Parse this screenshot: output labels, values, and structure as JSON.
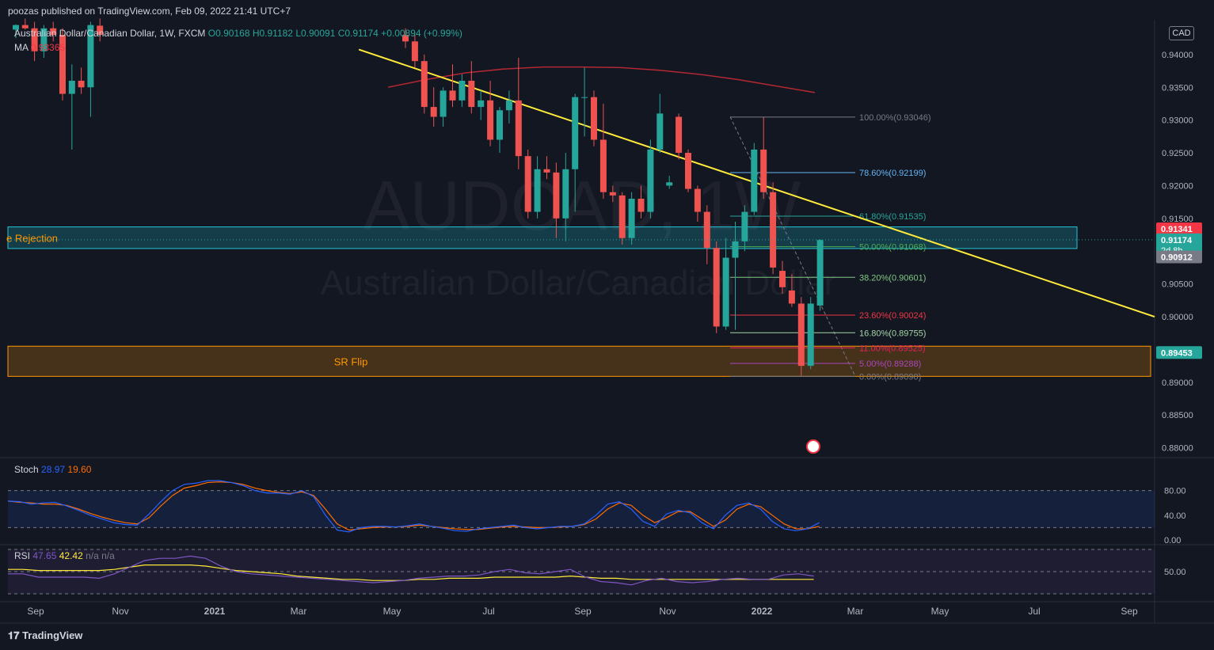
{
  "header": {
    "published": "poozas published on TradingView.com, Feb 09, 2022 21:41 UTC+7",
    "symbol_line": "Australian Dollar/Canadian Dollar, 1W, FXCM",
    "ohlc": "O0.90168 H0.91182 L0.90091 C0.91174 +0.00894 (+0.99%)",
    "ma_label": "MA",
    "ma_value": "0.93365",
    "currency_button": "CAD"
  },
  "watermark": {
    "symbol": "AUDCAD, 1W",
    "name": "Australian Dollar/Canadian Dollar"
  },
  "footer": {
    "brand": "TradingView"
  },
  "price_tags": [
    {
      "value": "0.91341",
      "color": "#f23645"
    },
    {
      "value": "0.91174",
      "sub": "2d 8h",
      "color": "#26a69a"
    },
    {
      "value": "0.90912",
      "color": "#787b86"
    },
    {
      "value": "0.89453",
      "color": "#26a69a"
    }
  ],
  "zones": [
    {
      "label": "e Rejection",
      "top": 0.9137,
      "bottom": 0.9104,
      "color": "#22c5d8"
    },
    {
      "label": "SR Flip",
      "top": 0.8955,
      "bottom": 0.8909,
      "color": "#ff9800"
    }
  ],
  "fib_levels": [
    {
      "label": "100.00%(0.93046)",
      "price": 0.93046,
      "color": "#787b86"
    },
    {
      "label": "78.60%(0.92199)",
      "price": 0.92199,
      "color": "#64b5f6"
    },
    {
      "label": "61.80%(0.91535)",
      "price": 0.91535,
      "color": "#26a69a"
    },
    {
      "label": "50.00%(0.91068)",
      "price": 0.91068,
      "color": "#4caf50"
    },
    {
      "label": "38.20%(0.90601)",
      "price": 0.90601,
      "color": "#81c784"
    },
    {
      "label": "23.60%(0.90024)",
      "price": 0.90024,
      "color": "#f23645"
    },
    {
      "label": "16.80%(0.89755)",
      "price": 0.89755,
      "color": "#a5d6a7"
    },
    {
      "label": "11.00%(0.89525)",
      "price": 0.89525,
      "color": "#e91e63"
    },
    {
      "label": "5.00%(0.89288)",
      "price": 0.89288,
      "color": "#ab47bc"
    },
    {
      "label": "0.00%(0.89090)",
      "price": 0.8909,
      "color": "#787b86"
    }
  ],
  "indicators": {
    "stoch": {
      "name": "Stoch",
      "k": "28.97",
      "d": "19.60",
      "levels": [
        "80.00",
        "40.00",
        "0.00"
      ]
    },
    "rsi": {
      "name": "RSI",
      "value": "47.65",
      "ma": "42.42",
      "extra": "n/a n/a",
      "levels": [
        "50.00"
      ]
    }
  },
  "chart_data": {
    "type": "candlestick",
    "symbol": "AUDCAD",
    "timeframe": "1W",
    "y_ticks": [
      "0.94000",
      "0.93500",
      "0.93000",
      "0.92500",
      "0.92000",
      "0.91500",
      "0.90500",
      "0.90000",
      "0.89000",
      "0.88500",
      "0.88000"
    ],
    "ylim": [
      0.8785,
      0.9453
    ],
    "x_ticks": [
      "Sep",
      "Nov",
      "2021",
      "Mar",
      "May",
      "Jul",
      "Sep",
      "Nov",
      "2022",
      "Mar",
      "May",
      "Jul",
      "Sep"
    ],
    "candles": [
      {
        "o": 0.9438,
        "h": 0.9446,
        "l": 0.9425,
        "c": 0.9445
      },
      {
        "o": 0.9445,
        "h": 0.9455,
        "l": 0.9438,
        "c": 0.944
      },
      {
        "o": 0.944,
        "h": 0.945,
        "l": 0.939,
        "c": 0.9405
      },
      {
        "o": 0.9405,
        "h": 0.9445,
        "l": 0.9395,
        "c": 0.944
      },
      {
        "o": 0.944,
        "h": 0.945,
        "l": 0.942,
        "c": 0.943
      },
      {
        "o": 0.943,
        "h": 0.944,
        "l": 0.933,
        "c": 0.934
      },
      {
        "o": 0.934,
        "h": 0.9385,
        "l": 0.9255,
        "c": 0.936
      },
      {
        "o": 0.936,
        "h": 0.938,
        "l": 0.934,
        "c": 0.935
      },
      {
        "o": 0.935,
        "h": 0.945,
        "l": 0.9305,
        "c": 0.9445
      },
      {
        "o": 0.9444,
        "h": 0.9455,
        "l": 0.942,
        "c": 0.943
      },
      {
        "o": 0.943,
        "h": 0.944,
        "l": 0.941,
        "c": 0.942
      },
      {
        "o": 0.942,
        "h": 0.943,
        "l": 0.938,
        "c": 0.939
      },
      {
        "o": 0.939,
        "h": 0.94,
        "l": 0.931,
        "c": 0.932
      },
      {
        "o": 0.932,
        "h": 0.935,
        "l": 0.929,
        "c": 0.9305
      },
      {
        "o": 0.9305,
        "h": 0.935,
        "l": 0.929,
        "c": 0.9345
      },
      {
        "o": 0.9345,
        "h": 0.9385,
        "l": 0.932,
        "c": 0.933
      },
      {
        "o": 0.933,
        "h": 0.937,
        "l": 0.932,
        "c": 0.936
      },
      {
        "o": 0.936,
        "h": 0.939,
        "l": 0.931,
        "c": 0.932
      },
      {
        "o": 0.932,
        "h": 0.9345,
        "l": 0.93,
        "c": 0.933
      },
      {
        "o": 0.933,
        "h": 0.936,
        "l": 0.926,
        "c": 0.927
      },
      {
        "o": 0.927,
        "h": 0.932,
        "l": 0.925,
        "c": 0.9315
      },
      {
        "o": 0.9315,
        "h": 0.9345,
        "l": 0.9295,
        "c": 0.933
      },
      {
        "o": 0.933,
        "h": 0.9395,
        "l": 0.9225,
        "c": 0.9245
      },
      {
        "o": 0.9245,
        "h": 0.9255,
        "l": 0.915,
        "c": 0.916
      },
      {
        "o": 0.916,
        "h": 0.9245,
        "l": 0.915,
        "c": 0.9225
      },
      {
        "o": 0.9225,
        "h": 0.9245,
        "l": 0.921,
        "c": 0.922
      },
      {
        "o": 0.922,
        "h": 0.9235,
        "l": 0.912,
        "c": 0.915
      },
      {
        "o": 0.915,
        "h": 0.925,
        "l": 0.9115,
        "c": 0.9225
      },
      {
        "o": 0.9225,
        "h": 0.934,
        "l": 0.916,
        "c": 0.9335
      },
      {
        "o": 0.9335,
        "h": 0.938,
        "l": 0.9275,
        "c": 0.9335
      },
      {
        "o": 0.9335,
        "h": 0.9345,
        "l": 0.926,
        "c": 0.927
      },
      {
        "o": 0.927,
        "h": 0.9325,
        "l": 0.918,
        "c": 0.919
      },
      {
        "o": 0.919,
        "h": 0.92,
        "l": 0.9175,
        "c": 0.9185
      },
      {
        "o": 0.9185,
        "h": 0.919,
        "l": 0.911,
        "c": 0.912
      },
      {
        "o": 0.912,
        "h": 0.919,
        "l": 0.911,
        "c": 0.918
      },
      {
        "o": 0.918,
        "h": 0.92,
        "l": 0.915,
        "c": 0.916
      },
      {
        "o": 0.916,
        "h": 0.927,
        "l": 0.915,
        "c": 0.9255
      },
      {
        "o": 0.9255,
        "h": 0.934,
        "l": 0.925,
        "c": 0.931
      },
      {
        "o": 0.92,
        "h": 0.9215,
        "l": 0.9195,
        "c": 0.9205
      },
      {
        "o": 0.9305,
        "h": 0.931,
        "l": 0.924,
        "c": 0.925
      },
      {
        "o": 0.925,
        "h": 0.9255,
        "l": 0.919,
        "c": 0.9195
      },
      {
        "o": 0.9195,
        "h": 0.92,
        "l": 0.9145,
        "c": 0.916
      },
      {
        "o": 0.916,
        "h": 0.917,
        "l": 0.908,
        "c": 0.9105
      },
      {
        "o": 0.9105,
        "h": 0.9115,
        "l": 0.8975,
        "c": 0.8985
      },
      {
        "o": 0.8985,
        "h": 0.912,
        "l": 0.898,
        "c": 0.909
      },
      {
        "o": 0.909,
        "h": 0.9145,
        "l": 0.898,
        "c": 0.9115
      },
      {
        "o": 0.9115,
        "h": 0.917,
        "l": 0.91,
        "c": 0.916
      },
      {
        "o": 0.916,
        "h": 0.9265,
        "l": 0.9155,
        "c": 0.9255
      },
      {
        "o": 0.9255,
        "h": 0.9305,
        "l": 0.918,
        "c": 0.919
      },
      {
        "o": 0.919,
        "h": 0.9205,
        "l": 0.9065,
        "c": 0.9075
      },
      {
        "o": 0.907,
        "h": 0.9085,
        "l": 0.9035,
        "c": 0.9045
      },
      {
        "o": 0.904,
        "h": 0.9065,
        "l": 0.9015,
        "c": 0.902
      },
      {
        "o": 0.902,
        "h": 0.903,
        "l": 0.891,
        "c": 0.8925
      },
      {
        "o": 0.8925,
        "h": 0.903,
        "l": 0.892,
        "c": 0.902
      },
      {
        "o": 0.9017,
        "h": 0.9118,
        "l": 0.9009,
        "c": 0.9117
      }
    ],
    "ma_series": [
      0.935,
      0.9362,
      0.9372,
      0.9378,
      0.9381,
      0.9381,
      0.938,
      0.9376,
      0.937,
      0.9362,
      0.9352,
      0.9342
    ],
    "trendline": {
      "from": {
        "candle": 24,
        "price": 0.941
      },
      "to": {
        "candle": 114,
        "price": 0.9
      }
    },
    "stoch_k": [
      63,
      62,
      58,
      60,
      61,
      55,
      48,
      40,
      34,
      28,
      25,
      24,
      42,
      62,
      80,
      90,
      92,
      96,
      96,
      93,
      88,
      80,
      76,
      76,
      74,
      80,
      70,
      40,
      16,
      13,
      20,
      22,
      22,
      21,
      23,
      26,
      22,
      19,
      15,
      14,
      18,
      20,
      22,
      24,
      20,
      18,
      20,
      22,
      22,
      26,
      40,
      58,
      62,
      50,
      30,
      22,
      42,
      48,
      44,
      28,
      18,
      40,
      56,
      60,
      50,
      30,
      18,
      15,
      18,
      28
    ],
    "stoch_d": [
      63,
      61,
      60,
      58,
      58,
      56,
      50,
      43,
      37,
      32,
      28,
      26,
      36,
      55,
      72,
      84,
      88,
      93,
      94,
      93,
      90,
      84,
      80,
      77,
      75,
      78,
      72,
      50,
      26,
      16,
      18,
      20,
      21,
      21,
      22,
      24,
      22,
      20,
      18,
      17,
      17,
      19,
      21,
      22,
      21,
      20,
      20,
      21,
      22,
      25,
      34,
      50,
      60,
      56,
      40,
      28,
      36,
      46,
      46,
      34,
      22,
      32,
      50,
      58,
      54,
      40,
      26,
      18,
      18,
      22
    ],
    "rsi": [
      48,
      48,
      45,
      45,
      45,
      45,
      44,
      48,
      54,
      60,
      62,
      62,
      64,
      62,
      55,
      50,
      48,
      47,
      46,
      45,
      44,
      43,
      42,
      41,
      40,
      41,
      42,
      44,
      45,
      46,
      46,
      47,
      50,
      52,
      49,
      48,
      50,
      52,
      45,
      41,
      40,
      38,
      42,
      44,
      41,
      40,
      41,
      43,
      44,
      43,
      43,
      47,
      48,
      46
    ],
    "rsi_ma": [
      52,
      52,
      51,
      51,
      51,
      51,
      51,
      52,
      54,
      56,
      56,
      56,
      56,
      55,
      53,
      51,
      50,
      49,
      48,
      46,
      45,
      44,
      43,
      43,
      42,
      42,
      42,
      43,
      43,
      44,
      44,
      44,
      45,
      45,
      45,
      45,
      45,
      46,
      45,
      44,
      44,
      43,
      43,
      43,
      43,
      43,
      43,
      43,
      43,
      43,
      43,
      43,
      43,
      43
    ]
  }
}
